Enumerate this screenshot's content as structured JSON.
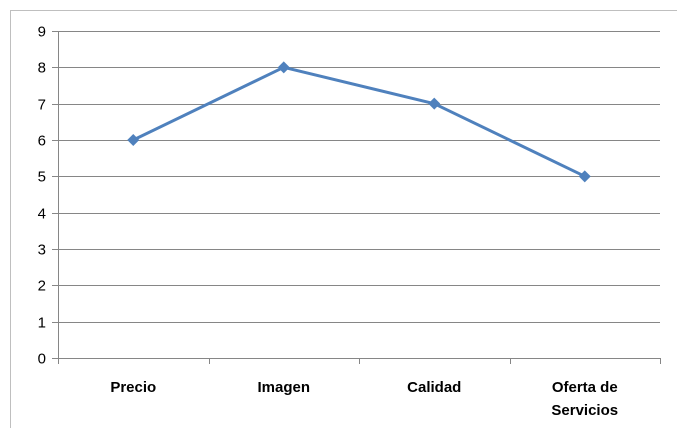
{
  "chart_data": {
    "type": "line",
    "categories": [
      [
        "Precio"
      ],
      [
        "Imagen"
      ],
      [
        "Calidad"
      ],
      [
        "Oferta de",
        "Servicios"
      ]
    ],
    "series": [
      {
        "values": [
          6,
          8,
          7,
          5
        ],
        "color": "#4f81bd",
        "marker": "diamond"
      }
    ],
    "ylim": [
      0,
      9
    ],
    "yticks": [
      0,
      1,
      2,
      3,
      4,
      5,
      6,
      7,
      8,
      9
    ],
    "grid": true,
    "legend": "none"
  },
  "colors": {
    "gridline": "#868686",
    "axis": "#868686",
    "frame": "#bfbfbf"
  }
}
